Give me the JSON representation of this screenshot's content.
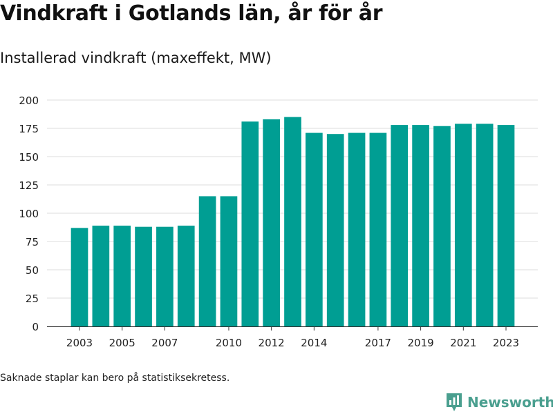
{
  "title": "Vindkraft i Gotlands län, år för år",
  "subtitle": "Installerad vindkraft (maxeffekt, MW)",
  "footnote": "Saknade staplar kan bero på statistiksekretess.",
  "brand": {
    "name": "Newsworthy",
    "icon": "newsworthy-logo-icon"
  },
  "colors": {
    "bar": "#009e93",
    "grid": "#dddddd",
    "axis": "#333333",
    "brand": "#4a9f8f"
  },
  "chart_data": {
    "type": "bar",
    "x": [
      2003,
      2004,
      2005,
      2006,
      2007,
      2008,
      2009,
      2010,
      2011,
      2012,
      2013,
      2014,
      2015,
      2016,
      2017,
      2018,
      2019,
      2020,
      2021,
      2022,
      2023
    ],
    "values": [
      87,
      89,
      89,
      88,
      88,
      89,
      115,
      115,
      181,
      183,
      185,
      171,
      170,
      171,
      171,
      178,
      178,
      177,
      179,
      179,
      178
    ],
    "xticks": [
      2003,
      2005,
      2007,
      2010,
      2012,
      2014,
      2017,
      2019,
      2021,
      2023
    ],
    "yticks": [
      0,
      25,
      50,
      75,
      100,
      125,
      150,
      175,
      200
    ],
    "ylim": [
      0,
      200
    ],
    "xlabel": "",
    "ylabel": "",
    "grid": true,
    "legend": "none"
  }
}
